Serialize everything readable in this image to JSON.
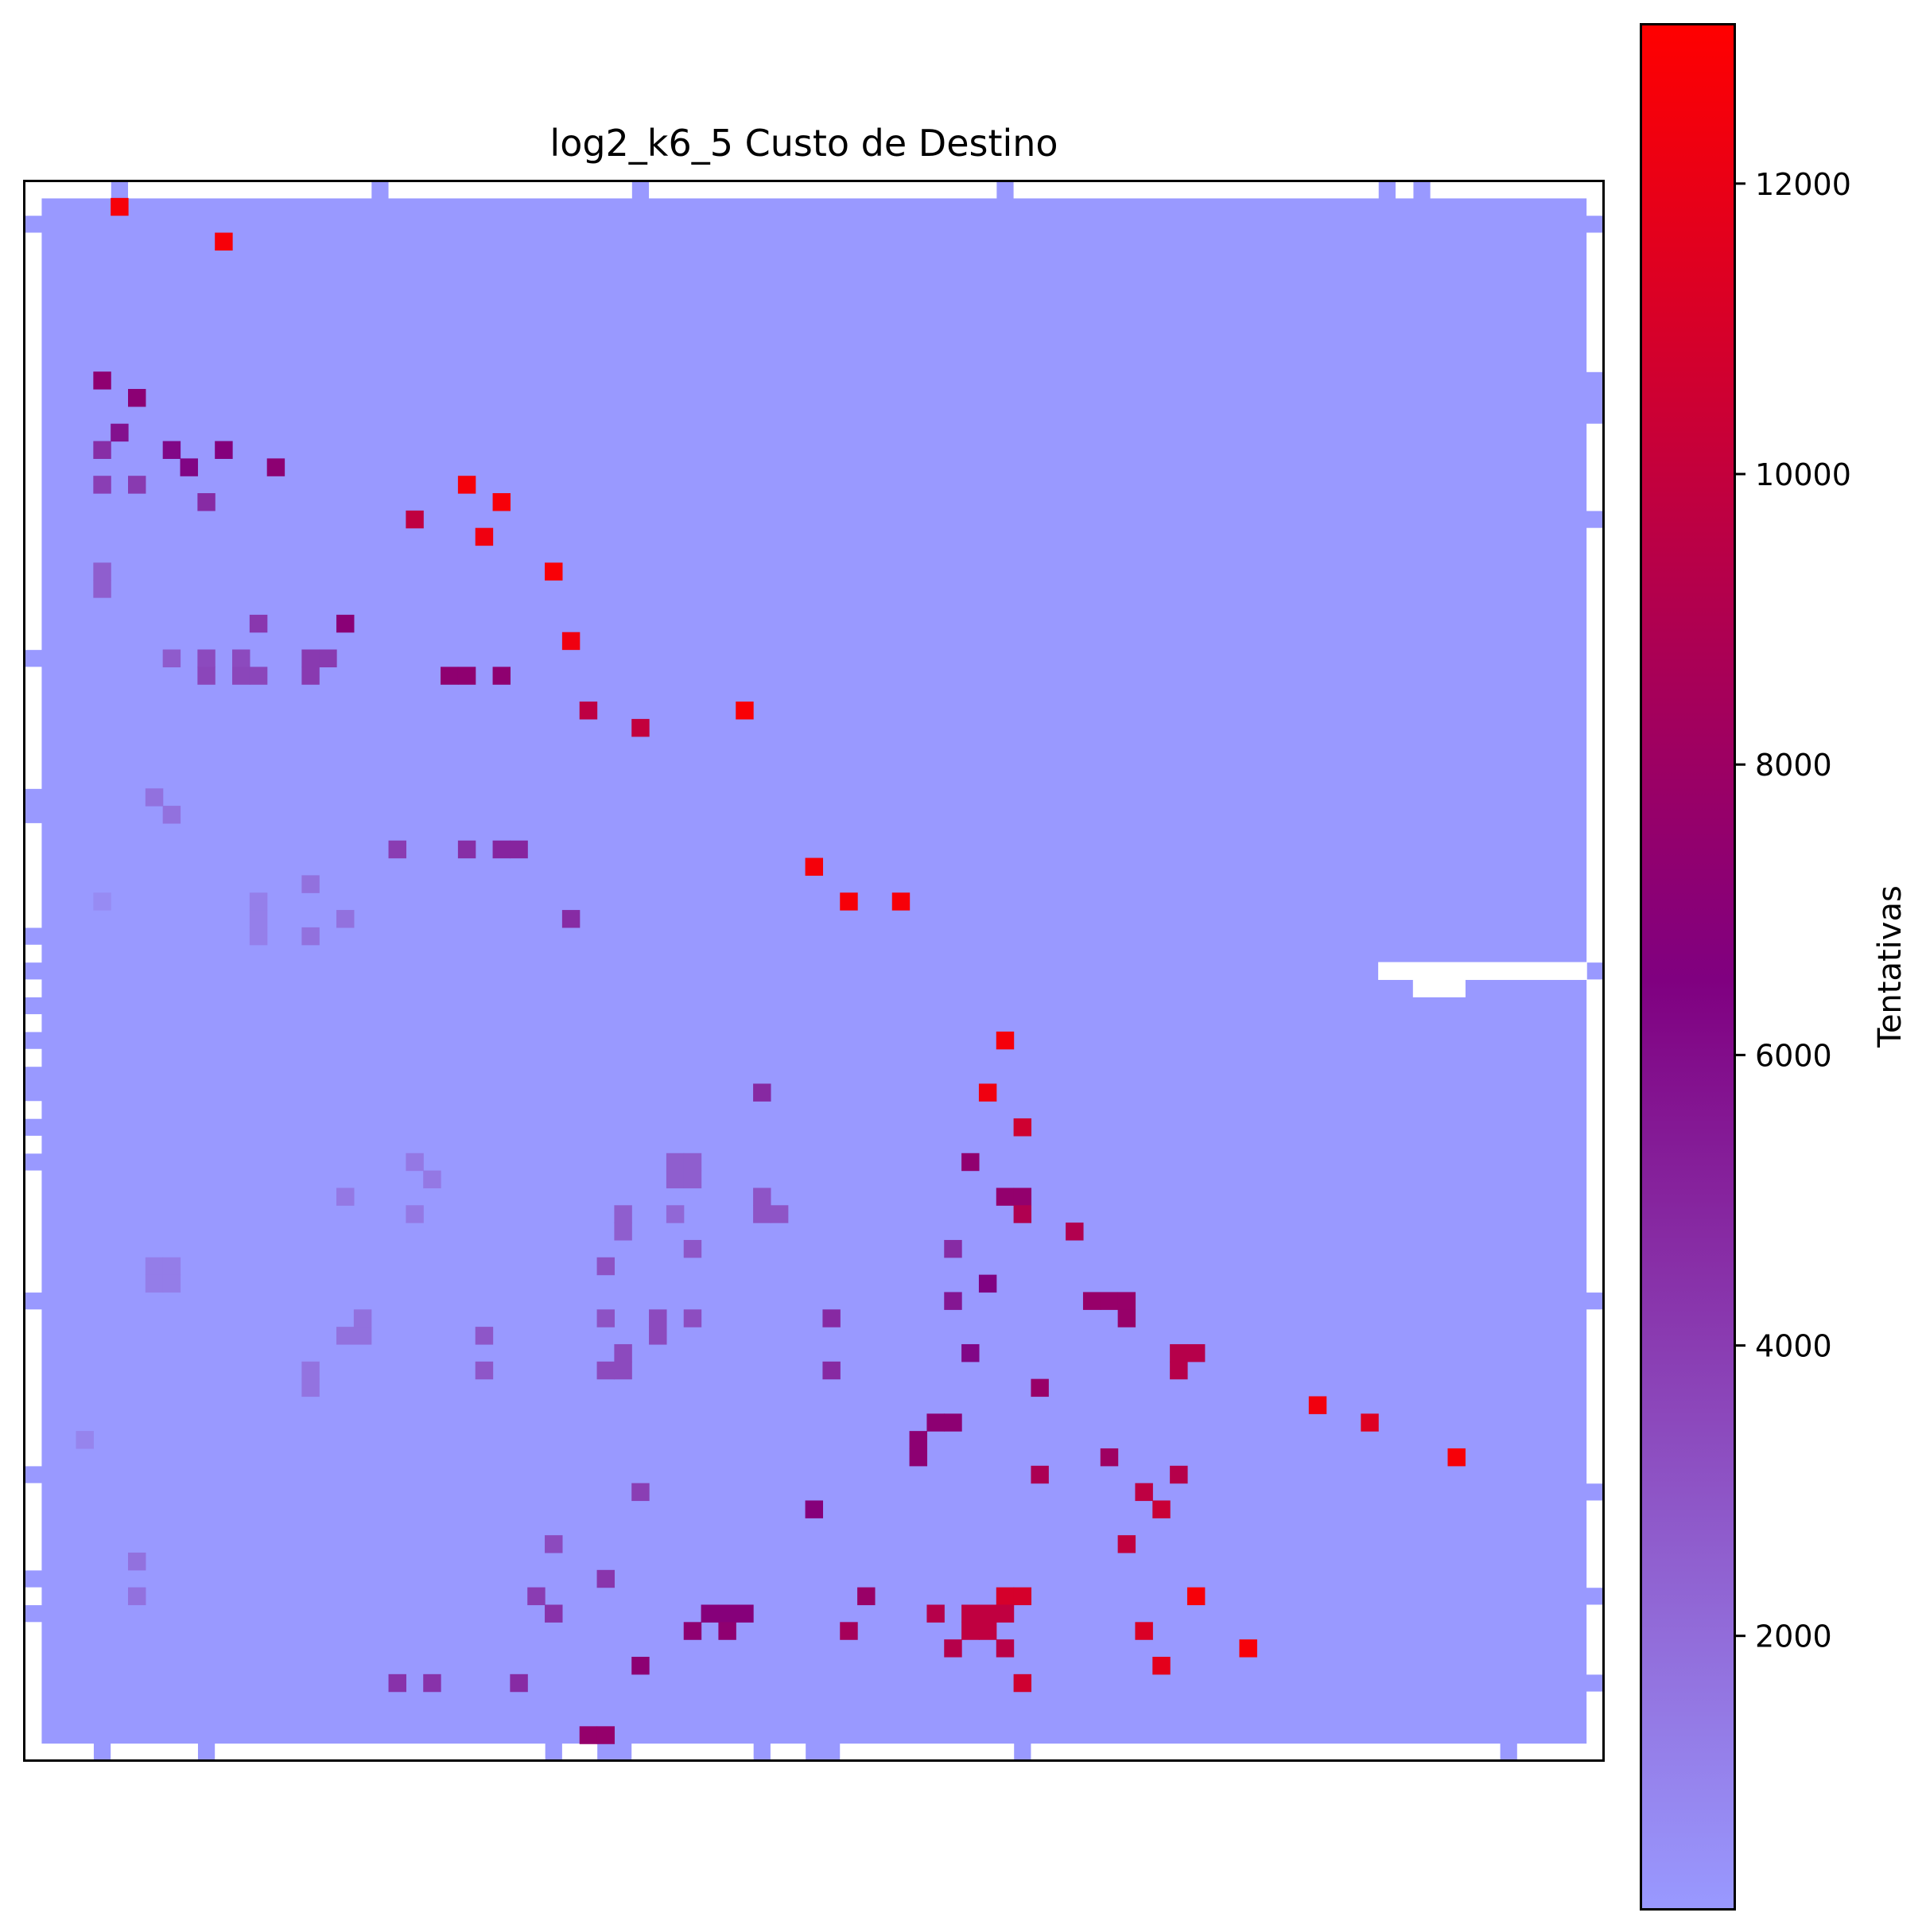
{
  "chart_data": {
    "type": "heatmap",
    "title": "log2_k6_5 Custo de Destino",
    "xlabel": "",
    "ylabel": "",
    "grid": false,
    "axes_ticks": "none",
    "grid_size": {
      "cols": 91,
      "rows": 91
    },
    "background_value": 120,
    "colorbar": {
      "label": "Tentativas",
      "range": [
        120,
        13100
      ],
      "ticks": [
        2000,
        4000,
        6000,
        8000,
        10000,
        12000
      ],
      "tick_labels": [
        "2000",
        "4000",
        "6000",
        "8000",
        "10000",
        "12000"
      ],
      "colors": {
        "low": "#9999ff",
        "mid": "#800080",
        "high": "#ff0000"
      }
    },
    "colormap_stops": [
      {
        "value": 120,
        "color": "#9999ff"
      },
      {
        "value": 6500,
        "color": "#800080"
      },
      {
        "value": 13100,
        "color": "#ff0000"
      }
    ],
    "empty_cells": [
      {
        "c": 0,
        "r": 0,
        "w": 1,
        "h": 1
      },
      {
        "c": 1,
        "r": 0,
        "w": 4,
        "h": 1
      },
      {
        "c": 6,
        "r": 0,
        "w": 14,
        "h": 1
      },
      {
        "c": 21,
        "r": 0,
        "w": 14,
        "h": 1
      },
      {
        "c": 36,
        "r": 0,
        "w": 20,
        "h": 1
      },
      {
        "c": 57,
        "r": 0,
        "w": 21,
        "h": 1
      },
      {
        "c": 79,
        "r": 0,
        "w": 1,
        "h": 1
      },
      {
        "c": 81,
        "r": 0,
        "w": 10,
        "h": 1
      },
      {
        "c": 0,
        "r": 1,
        "w": 1,
        "h": 1
      },
      {
        "c": 90,
        "r": 1,
        "w": 1,
        "h": 1
      },
      {
        "c": 0,
        "r": 3,
        "w": 1,
        "h": 24
      },
      {
        "c": 90,
        "r": 3,
        "w": 1,
        "h": 8
      },
      {
        "c": 90,
        "r": 14,
        "w": 1,
        "h": 5
      },
      {
        "c": 90,
        "r": 20,
        "w": 1,
        "h": 25
      },
      {
        "c": 0,
        "r": 28,
        "w": 1,
        "h": 7
      },
      {
        "c": 0,
        "r": 37,
        "w": 1,
        "h": 6
      },
      {
        "c": 0,
        "r": 44,
        "w": 1,
        "h": 1
      },
      {
        "c": 0,
        "r": 46,
        "w": 1,
        "h": 1
      },
      {
        "c": 0,
        "r": 48,
        "w": 1,
        "h": 1
      },
      {
        "c": 0,
        "r": 50,
        "w": 1,
        "h": 1
      },
      {
        "c": 0,
        "r": 53,
        "w": 1,
        "h": 1
      },
      {
        "c": 0,
        "r": 55,
        "w": 1,
        "h": 1
      },
      {
        "c": 0,
        "r": 57,
        "w": 1,
        "h": 7
      },
      {
        "c": 0,
        "r": 65,
        "w": 1,
        "h": 9
      },
      {
        "c": 0,
        "r": 75,
        "w": 1,
        "h": 5
      },
      {
        "c": 0,
        "r": 81,
        "w": 1,
        "h": 1
      },
      {
        "c": 0,
        "r": 83,
        "w": 1,
        "h": 7
      },
      {
        "c": 90,
        "r": 46,
        "w": 1,
        "h": 18
      },
      {
        "c": 90,
        "r": 65,
        "w": 1,
        "h": 10
      },
      {
        "c": 90,
        "r": 76,
        "w": 1,
        "h": 5
      },
      {
        "c": 90,
        "r": 82,
        "w": 1,
        "h": 4
      },
      {
        "c": 90,
        "r": 87,
        "w": 1,
        "h": 3
      },
      {
        "c": 78,
        "r": 45,
        "w": 12,
        "h": 1
      },
      {
        "c": 80,
        "r": 46,
        "w": 3,
        "h": 1
      },
      {
        "c": 0,
        "r": 90,
        "w": 4,
        "h": 1
      },
      {
        "c": 5,
        "r": 90,
        "w": 5,
        "h": 1
      },
      {
        "c": 11,
        "r": 90,
        "w": 19,
        "h": 1
      },
      {
        "c": 31,
        "r": 90,
        "w": 2,
        "h": 1
      },
      {
        "c": 35,
        "r": 90,
        "w": 7,
        "h": 1
      },
      {
        "c": 43,
        "r": 90,
        "w": 2,
        "h": 1
      },
      {
        "c": 47,
        "r": 90,
        "w": 10,
        "h": 1
      },
      {
        "c": 58,
        "r": 90,
        "w": 27,
        "h": 1
      },
      {
        "c": 86,
        "r": 90,
        "w": 5,
        "h": 1
      }
    ],
    "cells": [
      {
        "c": 5,
        "r": 1,
        "v": 12700
      },
      {
        "c": 11,
        "r": 3,
        "v": 12700
      },
      {
        "c": 4,
        "r": 11,
        "v": 7300
      },
      {
        "c": 6,
        "r": 12,
        "v": 7100
      },
      {
        "c": 5,
        "r": 14,
        "v": 5800
      },
      {
        "c": 4,
        "r": 15,
        "v": 4600
      },
      {
        "c": 8,
        "r": 15,
        "v": 6200
      },
      {
        "c": 11,
        "r": 15,
        "v": 6700
      },
      {
        "c": 9,
        "r": 16,
        "v": 6300
      },
      {
        "c": 14,
        "r": 16,
        "v": 7200
      },
      {
        "c": 4,
        "r": 17,
        "v": 3900
      },
      {
        "c": 6,
        "r": 17,
        "v": 4100
      },
      {
        "c": 10,
        "r": 18,
        "v": 4700
      },
      {
        "c": 25,
        "r": 17,
        "v": 12600
      },
      {
        "c": 27,
        "r": 18,
        "v": 12700
      },
      {
        "c": 22,
        "r": 19,
        "v": 9800
      },
      {
        "c": 26,
        "r": 20,
        "v": 12300
      },
      {
        "c": 4,
        "r": 22,
        "v": 2600
      },
      {
        "c": 4,
        "r": 23,
        "v": 2600
      },
      {
        "c": 30,
        "r": 22,
        "v": 12800
      },
      {
        "c": 13,
        "r": 25,
        "v": 4200
      },
      {
        "c": 18,
        "r": 25,
        "v": 7000
      },
      {
        "c": 31,
        "r": 26,
        "v": 12300
      },
      {
        "c": 8,
        "r": 27,
        "v": 2700
      },
      {
        "c": 10,
        "r": 27,
        "v": 3400
      },
      {
        "c": 12,
        "r": 27,
        "v": 3400
      },
      {
        "c": 16,
        "r": 27,
        "v": 4100
      },
      {
        "c": 17,
        "r": 27,
        "v": 4100
      },
      {
        "c": 10,
        "r": 28,
        "v": 3600
      },
      {
        "c": 12,
        "r": 28,
        "v": 3600
      },
      {
        "c": 13,
        "r": 28,
        "v": 3600
      },
      {
        "c": 16,
        "r": 28,
        "v": 4100
      },
      {
        "c": 24,
        "r": 28,
        "v": 7300
      },
      {
        "c": 25,
        "r": 28,
        "v": 7300
      },
      {
        "c": 27,
        "r": 28,
        "v": 7300
      },
      {
        "c": 32,
        "r": 30,
        "v": 9700
      },
      {
        "c": 41,
        "r": 30,
        "v": 12800
      },
      {
        "c": 35,
        "r": 31,
        "v": 10000
      },
      {
        "c": 7,
        "r": 35,
        "v": 1800
      },
      {
        "c": 8,
        "r": 36,
        "v": 1800
      },
      {
        "c": 21,
        "r": 38,
        "v": 4000
      },
      {
        "c": 25,
        "r": 38,
        "v": 4600
      },
      {
        "c": 27,
        "r": 38,
        "v": 5000
      },
      {
        "c": 28,
        "r": 38,
        "v": 5000
      },
      {
        "c": 16,
        "r": 40,
        "v": 1800
      },
      {
        "c": 45,
        "r": 39,
        "v": 12600
      },
      {
        "c": 47,
        "r": 41,
        "v": 12700
      },
      {
        "c": 50,
        "r": 41,
        "v": 12700
      },
      {
        "c": 13,
        "r": 41,
        "v": 1200
      },
      {
        "c": 13,
        "r": 42,
        "v": 1200
      },
      {
        "c": 13,
        "r": 43,
        "v": 1200
      },
      {
        "c": 4,
        "r": 41,
        "v": 700
      },
      {
        "c": 18,
        "r": 42,
        "v": 1800
      },
      {
        "c": 16,
        "r": 43,
        "v": 1800
      },
      {
        "c": 31,
        "r": 42,
        "v": 4700
      },
      {
        "c": 56,
        "r": 49,
        "v": 12600
      },
      {
        "c": 55,
        "r": 52,
        "v": 12300
      },
      {
        "c": 42,
        "r": 52,
        "v": 4800
      },
      {
        "c": 57,
        "r": 54,
        "v": 10600
      },
      {
        "c": 54,
        "r": 56,
        "v": 7400
      },
      {
        "c": 37,
        "r": 56,
        "v": 2600
      },
      {
        "c": 38,
        "r": 56,
        "v": 2600
      },
      {
        "c": 37,
        "r": 57,
        "v": 2600
      },
      {
        "c": 38,
        "r": 57,
        "v": 2600
      },
      {
        "c": 56,
        "r": 58,
        "v": 7500
      },
      {
        "c": 57,
        "r": 58,
        "v": 7500
      },
      {
        "c": 57,
        "r": 59,
        "v": 9000
      },
      {
        "c": 60,
        "r": 60,
        "v": 9100
      },
      {
        "c": 42,
        "r": 58,
        "v": 3000
      },
      {
        "c": 42,
        "r": 59,
        "v": 3000
      },
      {
        "c": 43,
        "r": 59,
        "v": 3000
      },
      {
        "c": 37,
        "r": 59,
        "v": 2200
      },
      {
        "c": 34,
        "r": 59,
        "v": 2600
      },
      {
        "c": 34,
        "r": 60,
        "v": 2600
      },
      {
        "c": 38,
        "r": 61,
        "v": 2900
      },
      {
        "c": 53,
        "r": 61,
        "v": 4700
      },
      {
        "c": 22,
        "r": 56,
        "v": 1500
      },
      {
        "c": 23,
        "r": 57,
        "v": 1500
      },
      {
        "c": 18,
        "r": 58,
        "v": 1500
      },
      {
        "c": 22,
        "r": 59,
        "v": 1500
      },
      {
        "c": 7,
        "r": 62,
        "v": 1300
      },
      {
        "c": 8,
        "r": 62,
        "v": 1300
      },
      {
        "c": 7,
        "r": 63,
        "v": 1300
      },
      {
        "c": 8,
        "r": 63,
        "v": 1300
      },
      {
        "c": 33,
        "r": 62,
        "v": 3100
      },
      {
        "c": 55,
        "r": 63,
        "v": 6400
      },
      {
        "c": 53,
        "r": 64,
        "v": 5600
      },
      {
        "c": 61,
        "r": 64,
        "v": 7700
      },
      {
        "c": 62,
        "r": 64,
        "v": 7700
      },
      {
        "c": 63,
        "r": 64,
        "v": 7700
      },
      {
        "c": 63,
        "r": 65,
        "v": 7700
      },
      {
        "c": 19,
        "r": 65,
        "v": 1800
      },
      {
        "c": 18,
        "r": 66,
        "v": 1800
      },
      {
        "c": 19,
        "r": 66,
        "v": 1800
      },
      {
        "c": 26,
        "r": 66,
        "v": 2900
      },
      {
        "c": 26,
        "r": 68,
        "v": 2900
      },
      {
        "c": 33,
        "r": 65,
        "v": 3100
      },
      {
        "c": 36,
        "r": 65,
        "v": 3400
      },
      {
        "c": 36,
        "r": 66,
        "v": 3400
      },
      {
        "c": 38,
        "r": 65,
        "v": 3300
      },
      {
        "c": 46,
        "r": 65,
        "v": 4800
      },
      {
        "c": 34,
        "r": 67,
        "v": 3400
      },
      {
        "c": 33,
        "r": 68,
        "v": 3400
      },
      {
        "c": 34,
        "r": 68,
        "v": 3400
      },
      {
        "c": 16,
        "r": 68,
        "v": 1700
      },
      {
        "c": 16,
        "r": 69,
        "v": 1700
      },
      {
        "c": 46,
        "r": 68,
        "v": 4800
      },
      {
        "c": 54,
        "r": 67,
        "v": 6200
      },
      {
        "c": 66,
        "r": 67,
        "v": 9300
      },
      {
        "c": 67,
        "r": 67,
        "v": 9300
      },
      {
        "c": 66,
        "r": 68,
        "v": 9300
      },
      {
        "c": 58,
        "r": 69,
        "v": 7800
      },
      {
        "c": 74,
        "r": 70,
        "v": 12400
      },
      {
        "c": 77,
        "r": 71,
        "v": 11400
      },
      {
        "c": 52,
        "r": 71,
        "v": 7200
      },
      {
        "c": 53,
        "r": 71,
        "v": 7200
      },
      {
        "c": 51,
        "r": 72,
        "v": 7200
      },
      {
        "c": 51,
        "r": 73,
        "v": 7200
      },
      {
        "c": 3,
        "r": 72,
        "v": 1000
      },
      {
        "c": 62,
        "r": 73,
        "v": 8100
      },
      {
        "c": 82,
        "r": 73,
        "v": 12700
      },
      {
        "c": 58,
        "r": 74,
        "v": 8800
      },
      {
        "c": 66,
        "r": 74,
        "v": 9300
      },
      {
        "c": 35,
        "r": 75,
        "v": 3900
      },
      {
        "c": 64,
        "r": 75,
        "v": 9700
      },
      {
        "c": 45,
        "r": 76,
        "v": 6800
      },
      {
        "c": 65,
        "r": 76,
        "v": 10300
      },
      {
        "c": 30,
        "r": 78,
        "v": 3400
      },
      {
        "c": 63,
        "r": 78,
        "v": 9900
      },
      {
        "c": 6,
        "r": 79,
        "v": 1800
      },
      {
        "c": 33,
        "r": 80,
        "v": 4300
      },
      {
        "c": 6,
        "r": 81,
        "v": 1800
      },
      {
        "c": 29,
        "r": 81,
        "v": 4000
      },
      {
        "c": 48,
        "r": 81,
        "v": 7800
      },
      {
        "c": 56,
        "r": 81,
        "v": 10900
      },
      {
        "c": 57,
        "r": 81,
        "v": 10900
      },
      {
        "c": 67,
        "r": 81,
        "v": 12700
      },
      {
        "c": 30,
        "r": 82,
        "v": 4400
      },
      {
        "c": 39,
        "r": 82,
        "v": 6800
      },
      {
        "c": 40,
        "r": 82,
        "v": 6800
      },
      {
        "c": 41,
        "r": 82,
        "v": 6800
      },
      {
        "c": 52,
        "r": 82,
        "v": 9300
      },
      {
        "c": 54,
        "r": 82,
        "v": 9800
      },
      {
        "c": 55,
        "r": 82,
        "v": 9800
      },
      {
        "c": 56,
        "r": 82,
        "v": 9800
      },
      {
        "c": 38,
        "r": 83,
        "v": 7300
      },
      {
        "c": 40,
        "r": 83,
        "v": 7300
      },
      {
        "c": 47,
        "r": 83,
        "v": 8500
      },
      {
        "c": 54,
        "r": 83,
        "v": 9800
      },
      {
        "c": 55,
        "r": 83,
        "v": 9800
      },
      {
        "c": 64,
        "r": 83,
        "v": 11200
      },
      {
        "c": 53,
        "r": 84,
        "v": 9300
      },
      {
        "c": 56,
        "r": 84,
        "v": 9500
      },
      {
        "c": 70,
        "r": 84,
        "v": 12700
      },
      {
        "c": 35,
        "r": 85,
        "v": 7200
      },
      {
        "c": 65,
        "r": 85,
        "v": 11700
      },
      {
        "c": 21,
        "r": 86,
        "v": 4400
      },
      {
        "c": 23,
        "r": 86,
        "v": 4400
      },
      {
        "c": 28,
        "r": 86,
        "v": 4700
      },
      {
        "c": 57,
        "r": 86,
        "v": 10600
      },
      {
        "c": 32,
        "r": 89,
        "v": 7600
      },
      {
        "c": 33,
        "r": 89,
        "v": 7600
      }
    ]
  }
}
